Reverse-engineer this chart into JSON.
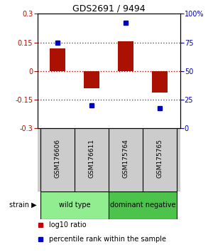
{
  "title": "GDS2691 / 9494",
  "samples": [
    "GSM176606",
    "GSM176611",
    "GSM175764",
    "GSM175765"
  ],
  "log10_ratio": [
    0.12,
    -0.09,
    0.155,
    -0.115
  ],
  "percentile_rank": [
    75,
    20,
    92,
    17
  ],
  "groups": [
    {
      "label": "wild type",
      "samples": [
        0,
        1
      ],
      "color": "#90EE90"
    },
    {
      "label": "dominant negative",
      "samples": [
        2,
        3
      ],
      "color": "#4CC44C"
    }
  ],
  "bar_color": "#AA1100",
  "dot_color": "#0000BB",
  "ylim_left": [
    -0.3,
    0.3
  ],
  "ylim_right": [
    0,
    100
  ],
  "yticks_left": [
    -0.3,
    -0.15,
    0,
    0.15,
    0.3
  ],
  "yticks_right": [
    0,
    25,
    50,
    75,
    100
  ],
  "ytick_labels_left": [
    "-0.3",
    "-0.15",
    "0",
    "0.15",
    "0.3"
  ],
  "ytick_labels_right": [
    "0",
    "25",
    "50",
    "75",
    "100%"
  ],
  "hline_zero_color": "#CC0000",
  "hline_other_color": "#555555",
  "background_color": "#ffffff",
  "bar_width": 0.45,
  "sample_box_color": "#cccccc",
  "legend_dot_color_red": "#CC0000",
  "legend_dot_color_blue": "#0000CC"
}
